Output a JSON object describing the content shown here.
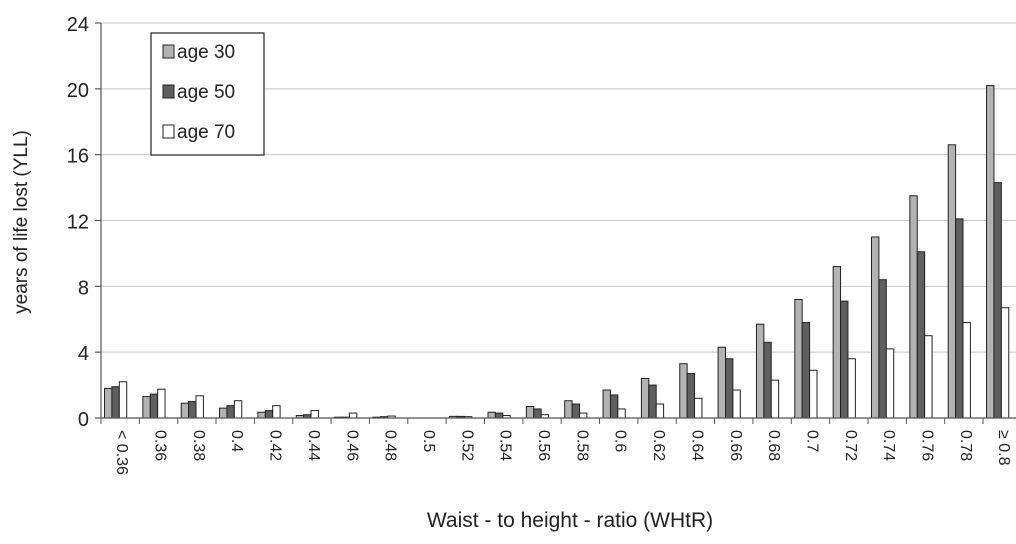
{
  "chart_data": {
    "type": "bar",
    "title": "",
    "xlabel": "Waist - to height - ratio (WHtR)",
    "ylabel": "years of life lost (YLL)",
    "ylim": [
      0,
      24
    ],
    "yticks": [
      0,
      4,
      8,
      12,
      16,
      20,
      24
    ],
    "grid": true,
    "legend_position": "top-left",
    "categories": [
      "< 0.36",
      "0.36",
      "0.38",
      "0.4",
      "0.42",
      "0.44",
      "0.46",
      "0.48",
      "0.5",
      "0.52",
      "0.54",
      "0.56",
      "0.58",
      "0.6",
      "0.62",
      "0.64",
      "0.66",
      "0.68",
      "0.7",
      "0.72",
      "0.74",
      "0.76",
      "0.78",
      "≥ 0.8"
    ],
    "series": [
      {
        "name": "age 30",
        "color": "#b3b3b3",
        "values": [
          1.8,
          1.3,
          0.9,
          0.6,
          0.35,
          0.15,
          0.05,
          0.05,
          0.0,
          0.1,
          0.35,
          0.7,
          1.05,
          1.7,
          2.4,
          3.3,
          4.3,
          5.7,
          7.2,
          9.2,
          11.0,
          13.5,
          16.6,
          20.2
        ]
      },
      {
        "name": "age 50",
        "color": "#5f5f5f",
        "values": [
          1.9,
          1.45,
          1.0,
          0.75,
          0.45,
          0.2,
          0.05,
          0.08,
          0.0,
          0.1,
          0.3,
          0.55,
          0.85,
          1.4,
          2.0,
          2.7,
          3.6,
          4.6,
          5.8,
          7.1,
          8.4,
          10.1,
          12.1,
          14.3
        ]
      },
      {
        "name": "age 70",
        "color": "#ffffff",
        "values": [
          2.2,
          1.75,
          1.35,
          1.05,
          0.75,
          0.45,
          0.3,
          0.12,
          0.0,
          0.08,
          0.15,
          0.2,
          0.3,
          0.55,
          0.85,
          1.2,
          1.7,
          2.3,
          2.9,
          3.6,
          4.2,
          5.0,
          5.8,
          6.7
        ]
      }
    ]
  }
}
